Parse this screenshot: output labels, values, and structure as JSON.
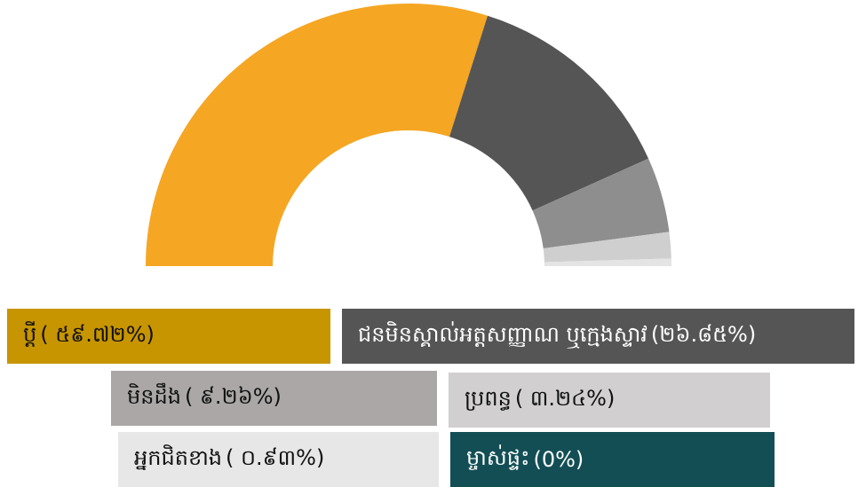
{
  "chart_data": {
    "type": "half-donut",
    "categories": [
      "ប្ដី",
      "ជនមិនស្គាល់អត្តសញ្ញាណ ឬក្មេងស្ទាវ",
      "មិនដឹង",
      "ប្រពន្ធ",
      "អ្នកជិតខាង",
      "ម្ចាស់ផ្ទះ"
    ],
    "values": [
      59.72,
      26.85,
      9.26,
      3.24,
      0.93,
      0
    ],
    "value_labels": [
      "( ៥៩.៧២%)",
      "(២៦.៨៥%)",
      "( ៩.២៦%)",
      "( ៣.២៤%)",
      "( ០.៩៣%)",
      "(0%)"
    ],
    "colors": [
      "#f5a623",
      "#555555",
      "#8e8e8e",
      "#cfcfcf",
      "#e4e4e4",
      "#134e55"
    ],
    "legend_colors": [
      "#c79500",
      "#555555",
      "#aba7a7",
      "#d1cfcf",
      "#e7e7e7",
      "#134e55"
    ]
  }
}
